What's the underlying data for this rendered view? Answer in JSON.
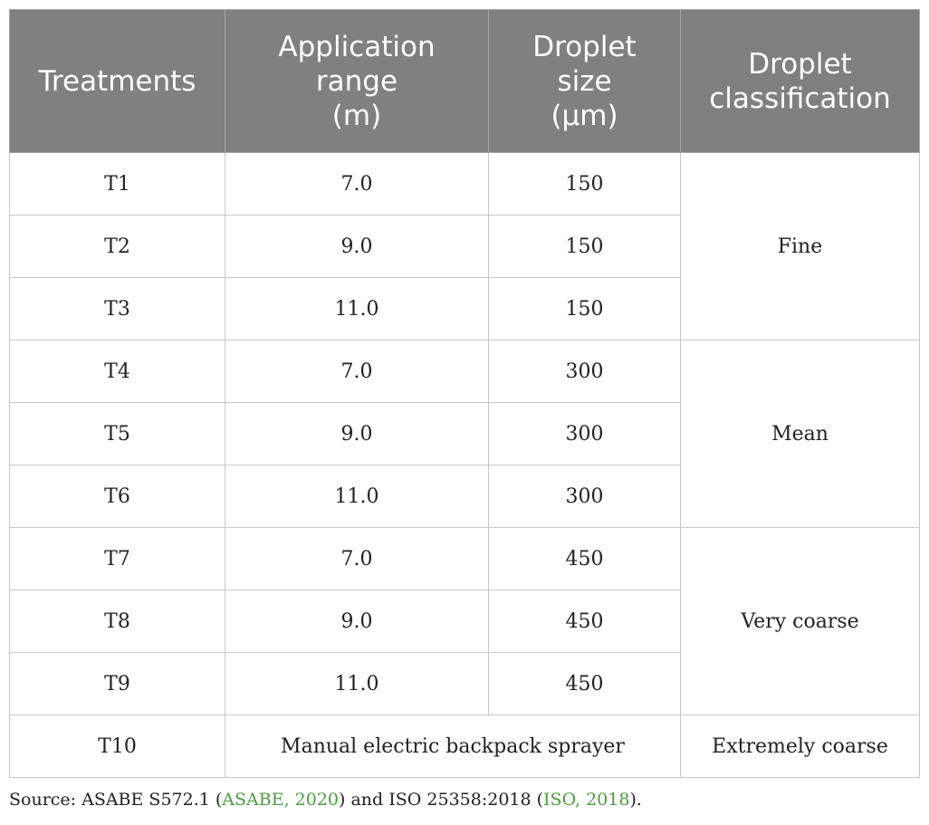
{
  "table": {
    "headers": [
      {
        "lines": [
          "Treatments"
        ]
      },
      {
        "lines": [
          "Application",
          "range",
          "(m)"
        ]
      },
      {
        "lines": [
          "Droplet",
          "size",
          "(µm)"
        ]
      },
      {
        "lines": [
          "Droplet",
          "classification"
        ]
      }
    ],
    "rows": [
      {
        "treatment": "T1",
        "range": "7.0",
        "size": "150"
      },
      {
        "treatment": "T2",
        "range": "9.0",
        "size": "150"
      },
      {
        "treatment": "T3",
        "range": "11.0",
        "size": "150"
      },
      {
        "treatment": "T4",
        "range": "7.0",
        "size": "300"
      },
      {
        "treatment": "T5",
        "range": "9.0",
        "size": "300"
      },
      {
        "treatment": "T6",
        "range": "11.0",
        "size": "300"
      },
      {
        "treatment": "T7",
        "range": "7.0",
        "size": "450"
      },
      {
        "treatment": "T8",
        "range": "9.0",
        "size": "450"
      },
      {
        "treatment": "T9",
        "range": "11.0",
        "size": "450"
      }
    ],
    "classifications": [
      "Fine",
      "Mean",
      "Very coarse"
    ],
    "last_row": {
      "treatment": "T10",
      "description": "Manual electric backpack sprayer",
      "classification": "Extremely coarse"
    }
  },
  "source": {
    "prefix": "Source: ASABE S572.1 (",
    "ref1": "ASABE, 2020",
    "middle": ") and ISO 25358:2018 (",
    "ref2": "ISO, 2018",
    "suffix": ")."
  }
}
